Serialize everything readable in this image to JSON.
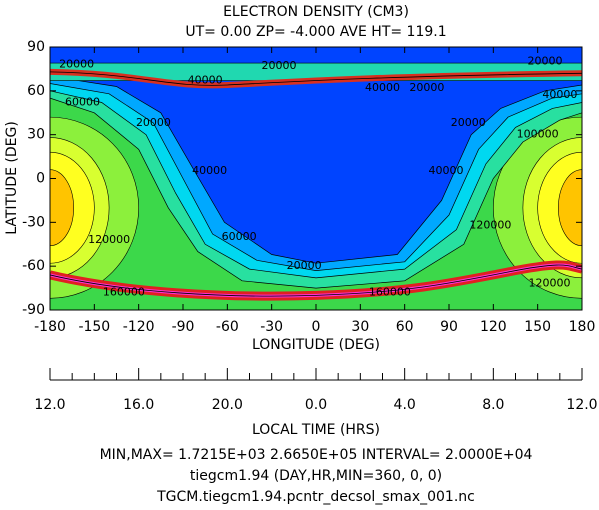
{
  "chart_data": {
    "type": "contour",
    "title": "ELECTRON DENSITY (CM3)",
    "subtitle": "UT= 0.00 ZP= -4.000 AVE HT= 119.1",
    "xlabel": "LONGITUDE (DEG)",
    "ylabel": "LATITUDE (DEG)",
    "xlim": [
      -180,
      180
    ],
    "ylim": [
      -90,
      90
    ],
    "xticks": [
      -180,
      -150,
      -120,
      -90,
      -60,
      -30,
      0,
      30,
      60,
      90,
      120,
      150,
      180
    ],
    "yticks": [
      -90,
      -60,
      -30,
      0,
      30,
      60,
      90
    ],
    "x2label": "LOCAL TIME (HRS)",
    "x2lim": [
      -180,
      180
    ],
    "x2ticks": [
      {
        "value": -180,
        "label": "12.0"
      },
      {
        "value": -120,
        "label": "16.0"
      },
      {
        "value": -60,
        "label": "20.0"
      },
      {
        "value": 0,
        "label": "0.0"
      },
      {
        "value": 60,
        "label": "4.0"
      },
      {
        "value": 120,
        "label": "8.0"
      },
      {
        "value": 180,
        "label": "12.0"
      }
    ],
    "contour_labels": [
      20000,
      40000,
      20000,
      40000,
      20000,
      20000,
      40000,
      60000,
      20000,
      40000,
      60000,
      120000,
      160000,
      20000,
      160000,
      20000,
      40000,
      100000,
      120000,
      120000
    ],
    "footer": [
      "MIN,MAX=  1.7215E+03  2.6650E+05 INTERVAL=  2.0000E+04",
      "tiegcm1.94 (DAY,HR,MIN=360, 0, 0)",
      "TGCM.tiegcm1.94.pcntr_decsol_smax_001.nc"
    ]
  }
}
